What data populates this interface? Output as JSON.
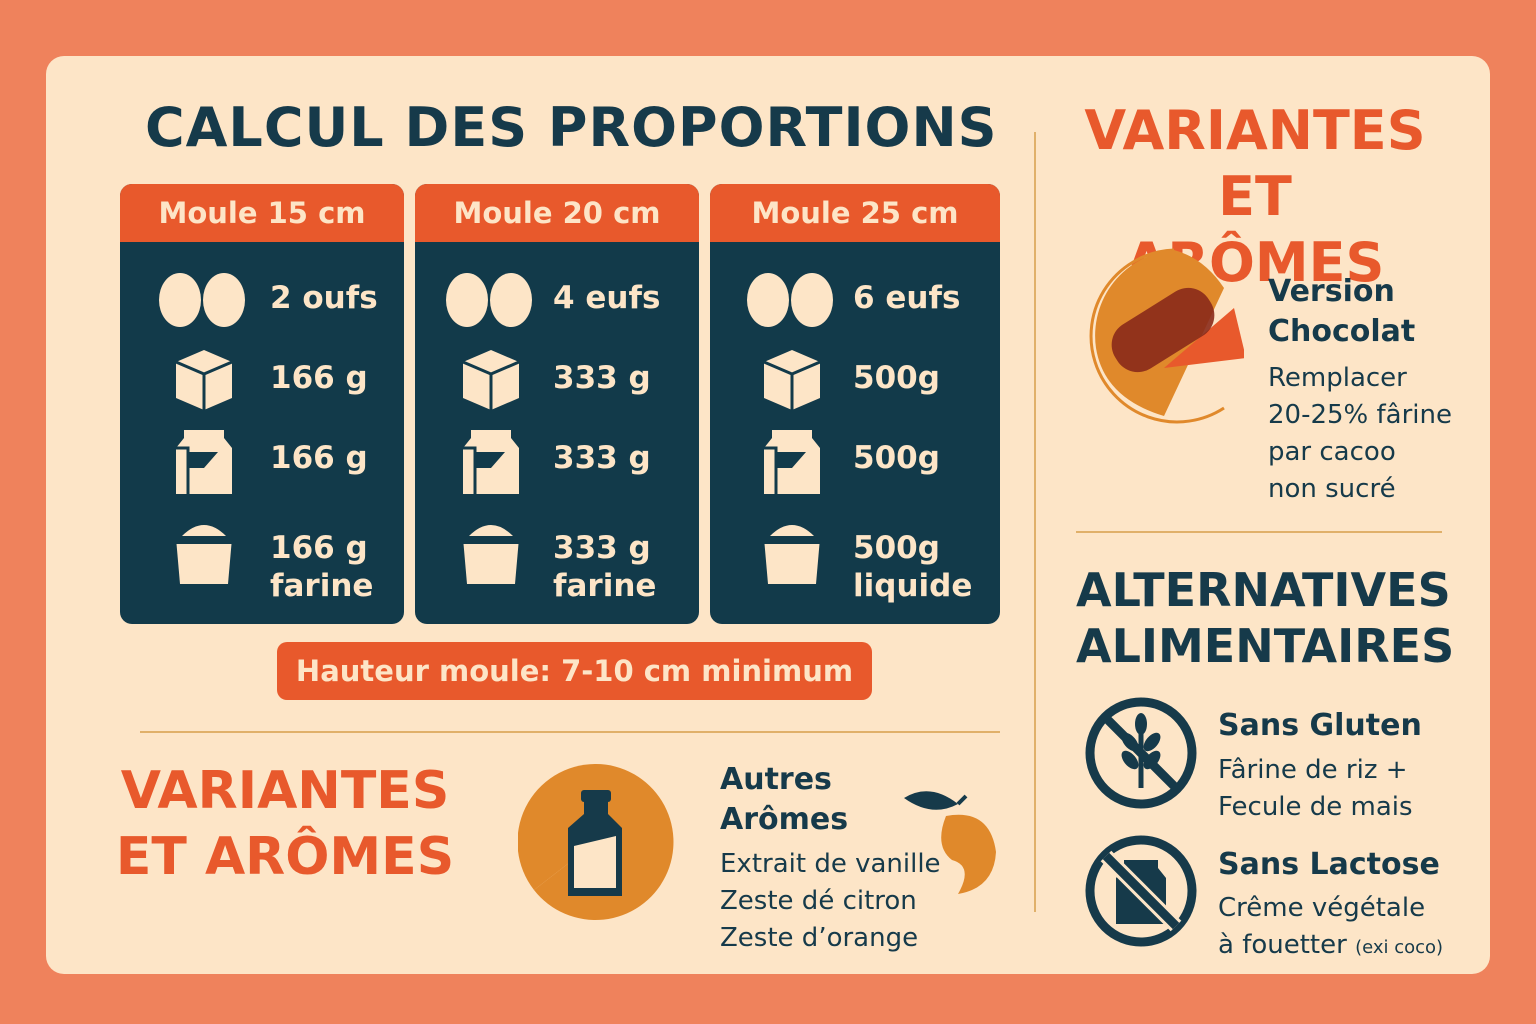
{
  "main_title": "CALCUL DES PROPORTIONS",
  "columns": [
    {
      "header": "Moule 15 cm",
      "eggs": "2 oufs",
      "sugar": "166 g",
      "butter": "166 g",
      "flour_qty": "166 g",
      "flour_label": "farine"
    },
    {
      "header": "Moule 20 cm",
      "eggs": "4 eufs",
      "sugar": "333 g",
      "butter": "333 g",
      "flour_qty": "333 g",
      "flour_label": "farine"
    },
    {
      "header": "Moule 25 cm",
      "eggs": "6 eufs",
      "sugar": "500g",
      "butter": "500g",
      "flour_qty": "500g",
      "flour_label": "liquide"
    }
  ],
  "height_note": "Hauteur moule: 7-10 cm minimum",
  "variants_bottom": {
    "line1": "VARIANTES",
    "line2": "ET ARÔMES"
  },
  "other_aromas": {
    "title_line1": "Autres",
    "title_line2": "Arômes",
    "items": [
      "Extrait de vanille",
      "Zeste dé citron",
      "Zeste d’orange"
    ]
  },
  "variants_right": {
    "line1": "VARIANTES",
    "line2": "ET ARÔMES"
  },
  "chocolate": {
    "title_line1": "Version",
    "title_line2": "Chocolat",
    "lines": [
      "Remplacer",
      "20-25% fârine",
      "par cacoo",
      "non sucré"
    ]
  },
  "alternatives": {
    "line1": "ALTERNATIVES",
    "line2": "ALIMENTAIRES"
  },
  "gluten_free": {
    "title": "Sans Gluten",
    "lines": [
      "Fârine de riz +",
      "Fecule de mais"
    ]
  },
  "lactose_free": {
    "title": "Sans Lactose",
    "line1": "Crême végétale",
    "line2": "à fouetter",
    "note": "(exi coco)"
  },
  "colors": {
    "background": "#ef825c",
    "card": "#fde5c7",
    "navy": "#163a4a",
    "orange": "#e8592c",
    "amber": "#e0892b"
  },
  "icons": [
    "eggs-icon",
    "sugar-cube-icon",
    "butter-pack-icon",
    "flour-bowl-icon",
    "bottle-icon",
    "orange-fruit-icon",
    "chocolate-icon",
    "no-gluten-icon",
    "no-lactose-icon"
  ]
}
